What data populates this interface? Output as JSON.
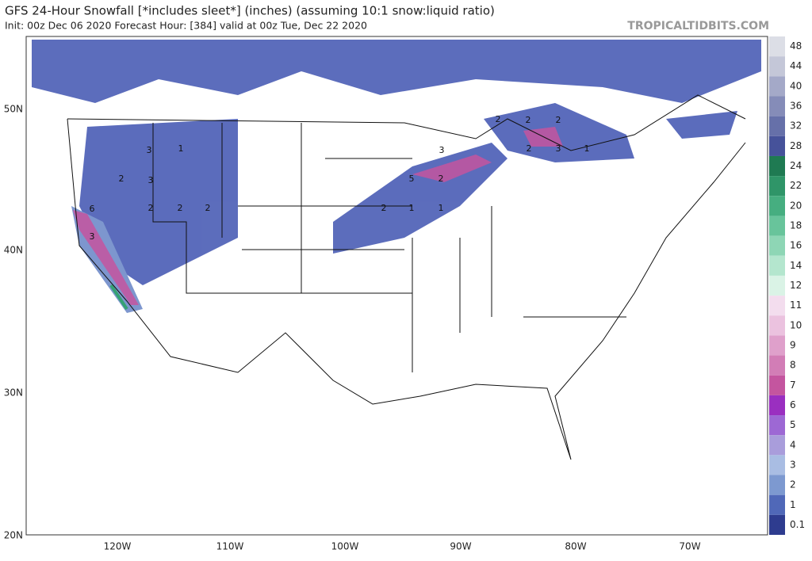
{
  "header": {
    "title": "GFS 24-Hour Snowfall [*includes sleet*] (inches) (assuming 10:1 snow:liquid ratio)",
    "subtitle": "Init: 00z Dec 06 2020   Forecast Hour: [384]   valid at 00z Tue, Dec 22 2020",
    "brand": "TROPICALTIDBITS.COM"
  },
  "map": {
    "lat_labels": [
      "50N",
      "40N",
      "30N",
      "20N"
    ],
    "lon_labels": [
      "120W",
      "110W",
      "100W",
      "90W",
      "80W",
      "70W"
    ],
    "contour_labels": [
      "3",
      "1",
      "2",
      "3",
      "2",
      "2",
      "2",
      "6",
      "3",
      "2",
      "1",
      "1",
      "5",
      "2",
      "3",
      "2",
      "2",
      "2",
      "2",
      "3",
      "1"
    ]
  },
  "colorbar": [
    {
      "value": 48,
      "color": "#dcdee6"
    },
    {
      "value": 44,
      "color": "#c4c7d8"
    },
    {
      "value": 40,
      "color": "#a4a9c8"
    },
    {
      "value": 36,
      "color": "#858cb8"
    },
    {
      "value": 32,
      "color": "#6670a9"
    },
    {
      "value": 28,
      "color": "#46529a"
    },
    {
      "value": 24,
      "color": "#1f7a52"
    },
    {
      "value": 22,
      "color": "#2f9568"
    },
    {
      "value": 20,
      "color": "#46ae80"
    },
    {
      "value": 18,
      "color": "#68c49b"
    },
    {
      "value": 16,
      "color": "#8ed6b5"
    },
    {
      "value": 14,
      "color": "#b4e6ce"
    },
    {
      "value": 12,
      "color": "#daf3e6"
    },
    {
      "value": 11,
      "color": "#f3ddee"
    },
    {
      "value": 10,
      "color": "#ebc2df"
    },
    {
      "value": 9,
      "color": "#dfa0cb"
    },
    {
      "value": 8,
      "color": "#d27db6"
    },
    {
      "value": 7,
      "color": "#c4559f"
    },
    {
      "value": 6,
      "color": "#9a2fc0"
    },
    {
      "value": 5,
      "color": "#9d68d4"
    },
    {
      "value": 4,
      "color": "#a99ddb"
    },
    {
      "value": 3,
      "color": "#a9bde3"
    },
    {
      "value": 2,
      "color": "#7d99d0"
    },
    {
      "value": 1,
      "color": "#5068b8"
    },
    {
      "value": 0.1,
      "color": "#2e3c8f"
    }
  ]
}
